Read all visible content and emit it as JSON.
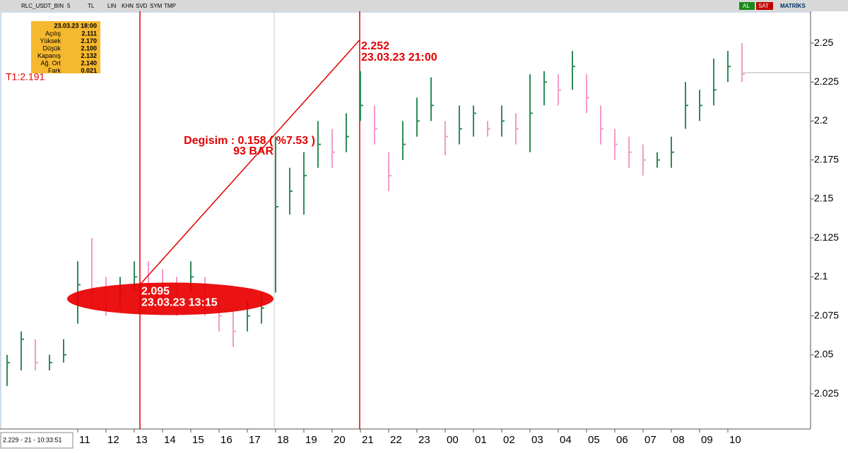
{
  "toolbar": {
    "symbol": "RLC_USDT_BIN",
    "period": "5",
    "currency": "TL",
    "buttons": [
      "LIN",
      "KHN",
      "SVD",
      "SYM",
      "TMP"
    ],
    "right_buttons": [
      "AL",
      "SAT"
    ],
    "brand": "MATRİKS"
  },
  "status": "2.229 - 21 - 10:33:51",
  "info_box": {
    "date": "23.03.23 18:00",
    "rows": [
      [
        "Açılış",
        "2.111"
      ],
      [
        "Yüksek",
        "2.170"
      ],
      [
        "Düşük",
        "2.100"
      ],
      [
        "Kapanış",
        "2.132"
      ],
      [
        "Ağ. Ort",
        "2.140"
      ],
      [
        "Fark",
        "0.021"
      ]
    ]
  },
  "chart_data": {
    "type": "ohlc",
    "label_t1": "T1:2.191",
    "x": [
      0,
      1,
      2,
      3,
      4,
      5,
      6,
      7,
      8,
      9,
      10,
      11,
      12,
      13,
      14,
      15,
      16,
      17,
      18,
      19,
      20,
      21,
      22,
      23,
      24,
      25,
      26,
      27,
      28,
      29,
      30,
      31,
      32,
      33,
      34,
      35,
      36,
      37,
      38,
      39,
      40,
      41,
      42,
      43,
      44,
      45,
      46,
      47,
      48,
      49,
      50,
      51,
      52
    ],
    "series": [
      {
        "name": "RLC_USDT_BIN",
        "high": [
          2.05,
          2.065,
          2.06,
          2.05,
          2.06,
          2.11,
          2.125,
          2.1,
          2.1,
          2.11,
          2.11,
          2.105,
          2.1,
          2.11,
          2.1,
          2.085,
          2.08,
          2.085,
          2.09,
          2.19,
          2.17,
          2.18,
          2.2,
          2.195,
          2.205,
          2.232,
          2.21,
          2.18,
          2.2,
          2.215,
          2.228,
          2.2,
          2.21,
          2.21,
          2.2,
          2.21,
          2.205,
          2.23,
          2.232,
          2.23,
          2.245,
          2.23,
          2.21,
          2.195,
          2.19,
          2.185,
          2.18,
          2.19,
          2.225,
          2.22,
          2.24,
          2.245,
          2.25
        ],
        "low": [
          2.03,
          2.04,
          2.04,
          2.04,
          2.045,
          2.07,
          2.08,
          2.075,
          2.08,
          2.09,
          2.085,
          2.08,
          2.075,
          2.09,
          2.075,
          2.065,
          2.055,
          2.065,
          2.07,
          2.09,
          2.14,
          2.14,
          2.17,
          2.17,
          2.18,
          2.2,
          2.185,
          2.155,
          2.175,
          2.19,
          2.2,
          2.178,
          2.185,
          2.19,
          2.19,
          2.19,
          2.185,
          2.18,
          2.21,
          2.21,
          2.22,
          2.205,
          2.185,
          2.175,
          2.17,
          2.165,
          2.17,
          2.17,
          2.195,
          2.2,
          2.21,
          2.225,
          2.225
        ],
        "close": [
          2.045,
          2.06,
          2.045,
          2.045,
          2.05,
          2.095,
          2.09,
          2.085,
          2.09,
          2.1,
          2.095,
          2.09,
          2.085,
          2.1,
          2.085,
          2.075,
          2.065,
          2.075,
          2.08,
          2.145,
          2.155,
          2.165,
          2.185,
          2.18,
          2.19,
          2.21,
          2.195,
          2.165,
          2.185,
          2.2,
          2.21,
          2.19,
          2.195,
          2.205,
          2.195,
          2.2,
          2.195,
          2.205,
          2.225,
          2.22,
          2.235,
          2.215,
          2.195,
          2.185,
          2.18,
          2.175,
          2.175,
          2.18,
          2.21,
          2.21,
          2.22,
          2.235,
          2.23
        ]
      }
    ],
    "up_color": "#2e8b57",
    "down_color": "#f59ac8",
    "last_value": 2.231,
    "separator_x": 18.9,
    "trend": {
      "x": [
        9.4,
        24.95
      ],
      "values": [
        2.095,
        2.252
      ],
      "value_labels": [
        "2.095",
        "2.252"
      ],
      "dates": [
        "23.03.23 13:15",
        "23.03.23 21:00"
      ],
      "change_label": "Degisim : 0.158 ( %7.53 )",
      "bars_label": "93 BAR",
      "color": "#e00000"
    },
    "xlim": [
      -0.5,
      56.85
    ],
    "xticks": [
      {
        "value": 5,
        "label": "11"
      },
      {
        "value": 7,
        "label": "12"
      },
      {
        "value": 9,
        "label": "13"
      },
      {
        "value": 11,
        "label": "14"
      },
      {
        "value": 13,
        "label": "15"
      },
      {
        "value": 15,
        "label": "16"
      },
      {
        "value": 17,
        "label": "17"
      },
      {
        "value": 19,
        "label": "18"
      },
      {
        "value": 21,
        "label": "19"
      },
      {
        "value": 23,
        "label": "20"
      },
      {
        "value": 25,
        "label": "21"
      },
      {
        "value": 27,
        "label": "22"
      },
      {
        "value": 29,
        "label": "23"
      },
      {
        "value": 31,
        "label": "00"
      },
      {
        "value": 33,
        "label": "01"
      },
      {
        "value": 35,
        "label": "02"
      },
      {
        "value": 37,
        "label": "03"
      },
      {
        "value": 39,
        "label": "04"
      },
      {
        "value": 41,
        "label": "05"
      },
      {
        "value": 43,
        "label": "06"
      },
      {
        "value": 45,
        "label": "07"
      },
      {
        "value": 47,
        "label": "08"
      },
      {
        "value": 49,
        "label": "09"
      },
      {
        "value": 51,
        "label": "10"
      }
    ],
    "ylim": [
      2.0024,
      2.2704
    ],
    "yticks": [
      2.025,
      2.05,
      2.075,
      2.1,
      2.125,
      2.15,
      2.175,
      2.2,
      2.225,
      2.25
    ]
  }
}
